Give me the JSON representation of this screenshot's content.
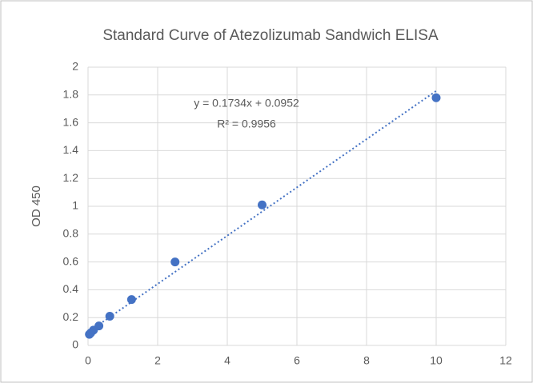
{
  "chart_data": {
    "type": "scatter",
    "title": "Standard Curve of Atezolizumab Sandwich ELISA",
    "y_label": "OD 450",
    "x": [
      0.039,
      0.078,
      0.156,
      0.3125,
      0.625,
      1.25,
      2.5,
      5,
      10
    ],
    "values": [
      0.08,
      0.09,
      0.11,
      0.14,
      0.21,
      0.33,
      0.6,
      1.01,
      1.78
    ],
    "color": "#4472c4",
    "xlim": [
      0,
      12
    ],
    "xticks": [
      0,
      2,
      4,
      6,
      8,
      10,
      12
    ],
    "ylim": [
      0,
      2
    ],
    "yticks": [
      0,
      0.2,
      0.4,
      0.6,
      0.8,
      1,
      1.2,
      1.4,
      1.6,
      1.8,
      2
    ],
    "grid": true,
    "trendline": {
      "slope": 0.1734,
      "intercept": 0.0952,
      "label": "y = 0.1734x + 0.0952",
      "r2_label": "R² = 0.9956"
    }
  }
}
